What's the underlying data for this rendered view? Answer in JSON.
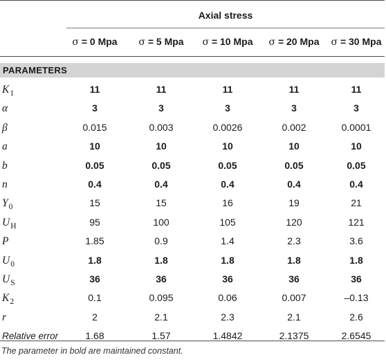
{
  "header": {
    "group_title": "Axial stress",
    "columns": [
      {
        "sigma": "σ",
        "label": " = 0 Mpa"
      },
      {
        "sigma": "σ",
        "label": " = 5 Mpa"
      },
      {
        "sigma": "σ",
        "label": " = 10 Mpa"
      },
      {
        "sigma": "σ",
        "label": " = 20 Mpa"
      },
      {
        "sigma": "σ",
        "label": " = 30 Mpa"
      }
    ]
  },
  "section_label": "PARAMETERS",
  "rows": [
    {
      "symbol": "K",
      "sub": "1",
      "bold": true,
      "values": [
        "11",
        "11",
        "11",
        "11",
        "11"
      ]
    },
    {
      "symbol": "α",
      "sub": "",
      "bold": true,
      "values": [
        "3",
        "3",
        "3",
        "3",
        "3"
      ]
    },
    {
      "symbol": "β",
      "sub": "",
      "bold": false,
      "values": [
        "0.015",
        "0.003",
        "0.0026",
        "0.002",
        "0.0001"
      ]
    },
    {
      "symbol": "a",
      "sub": "",
      "bold": true,
      "values": [
        "10",
        "10",
        "10",
        "10",
        "10"
      ]
    },
    {
      "symbol": "b",
      "sub": "",
      "bold": true,
      "values": [
        "0.05",
        "0.05",
        "0.05",
        "0.05",
        "0.05"
      ]
    },
    {
      "symbol": "n",
      "sub": "",
      "bold": true,
      "values": [
        "0.4",
        "0.4",
        "0.4",
        "0.4",
        "0.4"
      ]
    },
    {
      "symbol": "Y",
      "sub": "0",
      "bold": false,
      "values": [
        "15",
        "15",
        "16",
        "19",
        "21"
      ]
    },
    {
      "symbol": "U",
      "sub": "H",
      "bold": false,
      "values": [
        "95",
        "100",
        "105",
        "120",
        "121"
      ]
    },
    {
      "symbol": "P",
      "sub": "",
      "bold": false,
      "values": [
        "1.85",
        "0.9",
        "1.4",
        "2.3",
        "3.6"
      ]
    },
    {
      "symbol": "U",
      "sub": "0",
      "bold": true,
      "values": [
        "1.8",
        "1.8",
        "1.8",
        "1.8",
        "1.8"
      ]
    },
    {
      "symbol": "U",
      "sub": "S",
      "bold": true,
      "values": [
        "36",
        "36",
        "36",
        "36",
        "36"
      ]
    },
    {
      "symbol": "K",
      "sub": "2",
      "bold": false,
      "values": [
        "0.1",
        "0.095",
        "0.06",
        "0.007",
        "–0.13"
      ]
    },
    {
      "symbol": "r",
      "sub": "",
      "bold": false,
      "values": [
        "2",
        "2.1",
        "2.3",
        "2.1",
        "2.6"
      ]
    },
    {
      "symbol": "Relative error",
      "sub": "",
      "bold": false,
      "values": [
        "1.68",
        "1.57",
        "1.4842",
        "2.1375",
        "2.6545"
      ]
    }
  ],
  "footnote": "The parameter in bold are maintained constant."
}
